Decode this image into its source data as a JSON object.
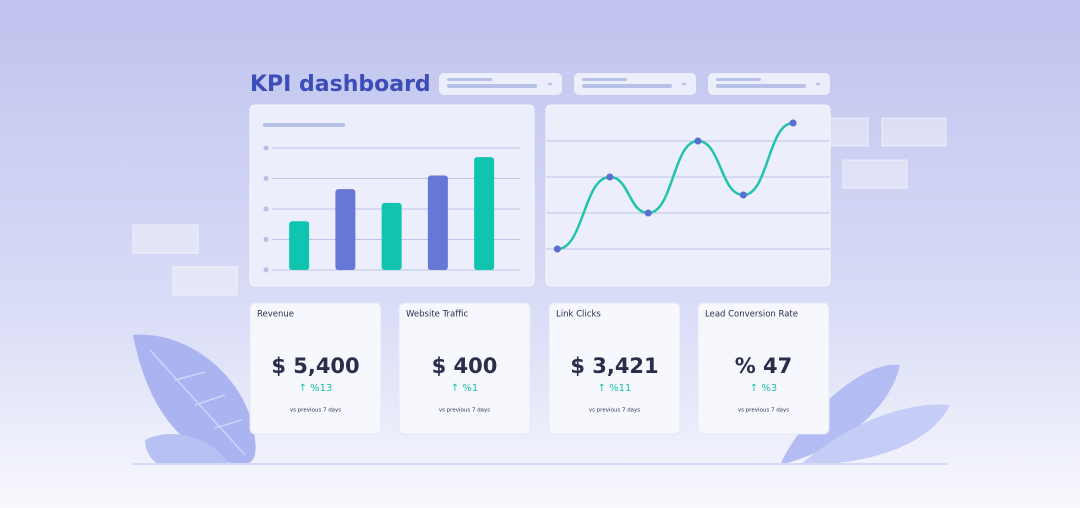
{
  "title": "KPI dashboard",
  "chart_data": [
    {
      "type": "bar",
      "categories": [
        null,
        null,
        null,
        null,
        null
      ],
      "values": [
        1.6,
        2.65,
        2.2,
        3.1,
        3.7
      ],
      "colors": [
        "#10c4b0",
        "#6677d6",
        "#10c4b0",
        "#6677d6",
        "#10c4b0"
      ],
      "ylim": [
        0,
        4
      ],
      "yticks": [
        0,
        1,
        2,
        3,
        4
      ],
      "grid": true
    },
    {
      "type": "line",
      "x": [
        0.4,
        2.25,
        3.6,
        5.35,
        6.95,
        8.7
      ],
      "values": [
        1,
        3,
        2,
        4,
        2.5,
        4.5
      ],
      "color": "#22c3ad",
      "marker_color": "#5b6fd1",
      "xlim": [
        0,
        10
      ],
      "ylim": [
        0,
        5
      ],
      "yticks": [
        1,
        2,
        3,
        4
      ],
      "grid": true
    }
  ],
  "cards": [
    {
      "title": "Revenue",
      "value": "$ 5,400",
      "change": "↑ %13",
      "note": "vs previous 7 days"
    },
    {
      "title": "Website Traffic",
      "value": "$ 400",
      "change": "↑ %1",
      "note": "vs previous 7 days"
    },
    {
      "title": "Link Clicks",
      "value": "$ 3,421",
      "change": "↑ %11",
      "note": "vs previous 7 days"
    },
    {
      "title": "Lead Conversion Rate",
      "value": "% 47",
      "change": "↑ %3",
      "note": "vs previous 7 days"
    }
  ]
}
